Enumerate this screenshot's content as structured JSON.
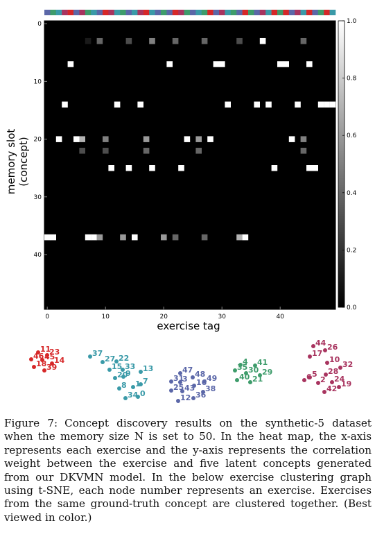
{
  "caption": {
    "label": "Figure 7:",
    "text": "Concept discovery results on the synthetic-5 dataset when the memory size N is set to 50. In the heat map, the x-axis represents each exercise and the y-axis represents the correlation weight between the exercise and five latent concepts generated from our DKVMN model. In the below exercise clustering graph using t-SNE, each node number represents an exercise. Exercises from the same ground-truth concept are clustered together. (Best viewed in color.)"
  },
  "chart_data": [
    {
      "type": "heatmap",
      "title": "",
      "xlabel": "exercise tag",
      "ylabel_lines": [
        "memory slot",
        "(concept)"
      ],
      "rows": 50,
      "cols": 50,
      "xlim": [
        0,
        50
      ],
      "ylim": [
        0,
        50
      ],
      "x_ticks": [
        "0",
        "10",
        "20",
        "30",
        "40"
      ],
      "y_ticks": [
        "0",
        "10",
        "20",
        "30",
        "40"
      ],
      "colorbar": {
        "range": [
          0.0,
          1.0
        ],
        "ticks": [
          "0.0",
          "0.2",
          "0.4",
          "0.6",
          "0.8",
          "1.0"
        ],
        "colormap": "gray"
      },
      "concept_colors": [
        "#d62728",
        "#3a9aa8",
        "#5b67a8",
        "#3e9c6b",
        "#a8345f"
      ],
      "concept_colorbar": [
        3,
        4,
        2,
        5,
        1,
        3,
        5,
        4,
        2,
        3,
        1,
        5,
        2,
        4,
        3,
        2,
        5,
        1,
        2,
        3,
        4,
        3,
        1,
        5,
        4,
        3,
        2,
        4,
        1,
        3,
        5,
        2,
        4,
        3,
        1,
        4,
        3,
        5,
        2,
        1,
        4,
        1,
        3,
        5,
        2,
        1,
        3,
        4,
        1,
        2
      ],
      "cells": [
        {
          "row": 3,
          "col": 7,
          "value": 0.1
        },
        {
          "row": 3,
          "col": 9,
          "value": 0.4
        },
        {
          "row": 3,
          "col": 14,
          "value": 0.3
        },
        {
          "row": 3,
          "col": 18,
          "value": 0.5
        },
        {
          "row": 3,
          "col": 22,
          "value": 0.4
        },
        {
          "row": 3,
          "col": 27,
          "value": 0.4
        },
        {
          "row": 3,
          "col": 33,
          "value": 0.3
        },
        {
          "row": 3,
          "col": 37,
          "value": 1.0
        },
        {
          "row": 3,
          "col": 44,
          "value": 0.4
        },
        {
          "row": 7,
          "col": 4,
          "value": 1.0
        },
        {
          "row": 7,
          "col": 21,
          "value": 1.0
        },
        {
          "row": 7,
          "col": 29,
          "value": 1.0
        },
        {
          "row": 7,
          "col": 30,
          "value": 1.0
        },
        {
          "row": 7,
          "col": 40,
          "value": 1.0
        },
        {
          "row": 7,
          "col": 41,
          "value": 1.0
        },
        {
          "row": 7,
          "col": 45,
          "value": 1.0
        },
        {
          "row": 14,
          "col": 3,
          "value": 1.0
        },
        {
          "row": 14,
          "col": 12,
          "value": 1.0
        },
        {
          "row": 14,
          "col": 16,
          "value": 1.0
        },
        {
          "row": 14,
          "col": 31,
          "value": 1.0
        },
        {
          "row": 14,
          "col": 36,
          "value": 1.0
        },
        {
          "row": 14,
          "col": 38,
          "value": 1.0
        },
        {
          "row": 14,
          "col": 43,
          "value": 1.0
        },
        {
          "row": 14,
          "col": 47,
          "value": 1.0
        },
        {
          "row": 14,
          "col": 48,
          "value": 1.0
        },
        {
          "row": 14,
          "col": 49,
          "value": 1.0
        },
        {
          "row": 20,
          "col": 2,
          "value": 1.0
        },
        {
          "row": 20,
          "col": 5,
          "value": 1.0
        },
        {
          "row": 20,
          "col": 6,
          "value": 0.7
        },
        {
          "row": 20,
          "col": 10,
          "value": 0.5
        },
        {
          "row": 20,
          "col": 17,
          "value": 0.6
        },
        {
          "row": 20,
          "col": 24,
          "value": 1.0
        },
        {
          "row": 20,
          "col": 26,
          "value": 0.6
        },
        {
          "row": 20,
          "col": 28,
          "value": 1.0
        },
        {
          "row": 20,
          "col": 42,
          "value": 1.0
        },
        {
          "row": 20,
          "col": 44,
          "value": 0.5
        },
        {
          "row": 22,
          "col": 6,
          "value": 0.3
        },
        {
          "row": 22,
          "col": 10,
          "value": 0.3
        },
        {
          "row": 22,
          "col": 17,
          "value": 0.4
        },
        {
          "row": 22,
          "col": 26,
          "value": 0.4
        },
        {
          "row": 22,
          "col": 44,
          "value": 0.4
        },
        {
          "row": 25,
          "col": 11,
          "value": 1.0
        },
        {
          "row": 25,
          "col": 14,
          "value": 1.0
        },
        {
          "row": 25,
          "col": 18,
          "value": 1.0
        },
        {
          "row": 25,
          "col": 23,
          "value": 1.0
        },
        {
          "row": 25,
          "col": 39,
          "value": 1.0
        },
        {
          "row": 25,
          "col": 45,
          "value": 1.0
        },
        {
          "row": 25,
          "col": 46,
          "value": 1.0
        },
        {
          "row": 37,
          "col": 0,
          "value": 1.0
        },
        {
          "row": 37,
          "col": 1,
          "value": 1.0
        },
        {
          "row": 37,
          "col": 7,
          "value": 1.0
        },
        {
          "row": 37,
          "col": 8,
          "value": 1.0
        },
        {
          "row": 37,
          "col": 9,
          "value": 0.6
        },
        {
          "row": 37,
          "col": 13,
          "value": 0.6
        },
        {
          "row": 37,
          "col": 15,
          "value": 1.0
        },
        {
          "row": 37,
          "col": 20,
          "value": 0.6
        },
        {
          "row": 37,
          "col": 22,
          "value": 0.4
        },
        {
          "row": 37,
          "col": 27,
          "value": 0.4
        },
        {
          "row": 37,
          "col": 33,
          "value": 0.7
        },
        {
          "row": 37,
          "col": 34,
          "value": 1.0
        }
      ]
    },
    {
      "type": "scatter",
      "title": "",
      "xlabel": "",
      "ylabel": "",
      "xlim": [
        0,
        540
      ],
      "ylim": [
        0,
        110
      ],
      "series": [
        {
          "color": "#d62728",
          "points": [
            {
              "label": "11",
              "x": 60,
              "y": 13
            },
            {
              "label": "23",
              "x": 73,
              "y": 17
            },
            {
              "label": "46",
              "x": 50,
              "y": 23
            },
            {
              "label": "45",
              "x": 66,
              "y": 24
            },
            {
              "label": "14",
              "x": 80,
              "y": 29
            },
            {
              "label": "18",
              "x": 54,
              "y": 34
            },
            {
              "label": "39",
              "x": 69,
              "y": 39
            }
          ]
        },
        {
          "color": "#3a9aa8",
          "points": [
            {
              "label": "37",
              "x": 135,
              "y": 19
            },
            {
              "label": "27",
              "x": 153,
              "y": 27
            },
            {
              "label": "22",
              "x": 173,
              "y": 26
            },
            {
              "label": "15",
              "x": 163,
              "y": 38
            },
            {
              "label": "33",
              "x": 182,
              "y": 38
            },
            {
              "label": "13",
              "x": 208,
              "y": 41
            },
            {
              "label": "9",
              "x": 183,
              "y": 48
            },
            {
              "label": "20",
              "x": 171,
              "y": 50
            },
            {
              "label": "1",
              "x": 197,
              "y": 63
            },
            {
              "label": "7",
              "x": 208,
              "y": 59
            },
            {
              "label": "8",
              "x": 177,
              "y": 65
            },
            {
              "label": "34",
              "x": 186,
              "y": 79
            },
            {
              "label": "0",
              "x": 204,
              "y": 77
            }
          ]
        },
        {
          "color": "#5b67a8",
          "points": [
            {
              "label": "47",
              "x": 265,
              "y": 43
            },
            {
              "label": "48",
              "x": 283,
              "y": 49
            },
            {
              "label": "31",
              "x": 252,
              "y": 55
            },
            {
              "label": "3",
              "x": 265,
              "y": 56
            },
            {
              "label": "49",
              "x": 300,
              "y": 55
            },
            {
              "label": "16",
              "x": 285,
              "y": 61
            },
            {
              "label": "25",
              "x": 252,
              "y": 68
            },
            {
              "label": "43",
              "x": 268,
              "y": 69
            },
            {
              "label": "38",
              "x": 298,
              "y": 70
            },
            {
              "label": "36",
              "x": 284,
              "y": 79
            },
            {
              "label": "12",
              "x": 262,
              "y": 83
            }
          ]
        },
        {
          "color": "#3e9c6b",
          "points": [
            {
              "label": "4",
              "x": 352,
              "y": 31
            },
            {
              "label": "41",
              "x": 373,
              "y": 32
            },
            {
              "label": "35",
              "x": 344,
              "y": 39
            },
            {
              "label": "30",
              "x": 360,
              "y": 43
            },
            {
              "label": "29",
              "x": 380,
              "y": 46
            },
            {
              "label": "40",
              "x": 347,
              "y": 53
            },
            {
              "label": "21",
              "x": 366,
              "y": 56
            }
          ]
        },
        {
          "color": "#a8345f",
          "points": [
            {
              "label": "44",
              "x": 457,
              "y": 4
            },
            {
              "label": "26",
              "x": 474,
              "y": 10
            },
            {
              "label": "17",
              "x": 452,
              "y": 19
            },
            {
              "label": "10",
              "x": 477,
              "y": 28
            },
            {
              "label": "32",
              "x": 496,
              "y": 35
            },
            {
              "label": "28",
              "x": 475,
              "y": 45
            },
            {
              "label": "6",
              "x": 444,
              "y": 53
            },
            {
              "label": "5",
              "x": 452,
              "y": 49
            },
            {
              "label": "2",
              "x": 464,
              "y": 57
            },
            {
              "label": "24",
              "x": 484,
              "y": 56
            },
            {
              "label": "19",
              "x": 494,
              "y": 63
            },
            {
              "label": "42",
              "x": 473,
              "y": 70
            }
          ]
        }
      ]
    }
  ]
}
